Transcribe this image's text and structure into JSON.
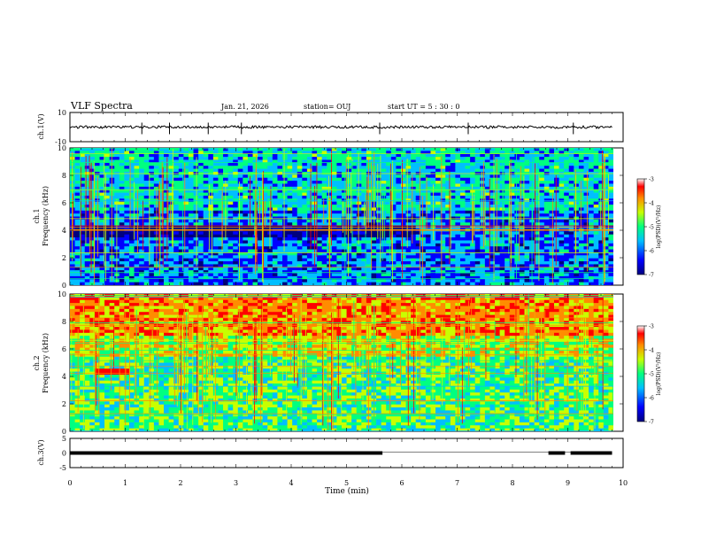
{
  "header": {
    "title": "VLF Spectra",
    "date": "Jan. 21, 2026",
    "station": "station= OUJ",
    "start": "start  UT =   5 : 30 : 0"
  },
  "colors": {
    "colormap": [
      "#00007f",
      "#0000ff",
      "#00bfff",
      "#00ff80",
      "#c8ff00",
      "#ff8c00",
      "#ff0000",
      "#ffffff"
    ]
  },
  "chart_data": [
    {
      "type": "line",
      "panel": "ch1-waveform",
      "ylabel": "ch.1(V)",
      "ylim": [
        -10,
        10
      ],
      "yticks": [
        "10",
        "-10"
      ],
      "xlim": [
        0,
        10
      ],
      "baseline": 0,
      "spikes_x": [
        1.3,
        1.8,
        2.5,
        3.1,
        5.6,
        7.2,
        9.1
      ]
    },
    {
      "type": "heatmap",
      "panel": "ch1-spectrogram",
      "ylabel": "Frequency (kHz)",
      "channel_label": "ch.1",
      "ylim": [
        0,
        10
      ],
      "yticks": [
        "0",
        "2",
        "4",
        "6",
        "8",
        "10"
      ],
      "xlim": [
        0,
        10
      ],
      "colorbar": {
        "label": "log(PSD)(V²/Hz)",
        "range": [
          -7,
          -3
        ],
        "ticks": [
          "-3",
          "-4",
          "-5",
          "-6",
          "-7"
        ]
      }
    },
    {
      "type": "heatmap",
      "panel": "ch2-spectrogram",
      "ylabel": "Frequency (kHz)",
      "channel_label": "ch.2",
      "ylim": [
        0,
        10
      ],
      "yticks": [
        "0",
        "2",
        "4",
        "6",
        "8",
        "10"
      ],
      "xlim": [
        0,
        10
      ],
      "colorbar": {
        "label": "log(PSD)(V²/Hz)",
        "range": [
          -7,
          -3
        ],
        "ticks": [
          "-3",
          "-4",
          "-5",
          "-6",
          "-7"
        ]
      }
    },
    {
      "type": "line",
      "panel": "ch3-waveform",
      "ylabel": "ch.3(V)",
      "ylim": [
        -5,
        5
      ],
      "yticks": [
        "5",
        "0",
        "-5"
      ],
      "xlim": [
        0,
        10
      ],
      "baseline": 0,
      "gaps_x": [
        [
          5.65,
          8.65
        ],
        [
          8.95,
          9.05
        ]
      ]
    }
  ],
  "xaxis": {
    "label": "Time (min)",
    "ticks": [
      "0",
      "1",
      "2",
      "3",
      "4",
      "5",
      "6",
      "7",
      "8",
      "9",
      "10"
    ]
  }
}
